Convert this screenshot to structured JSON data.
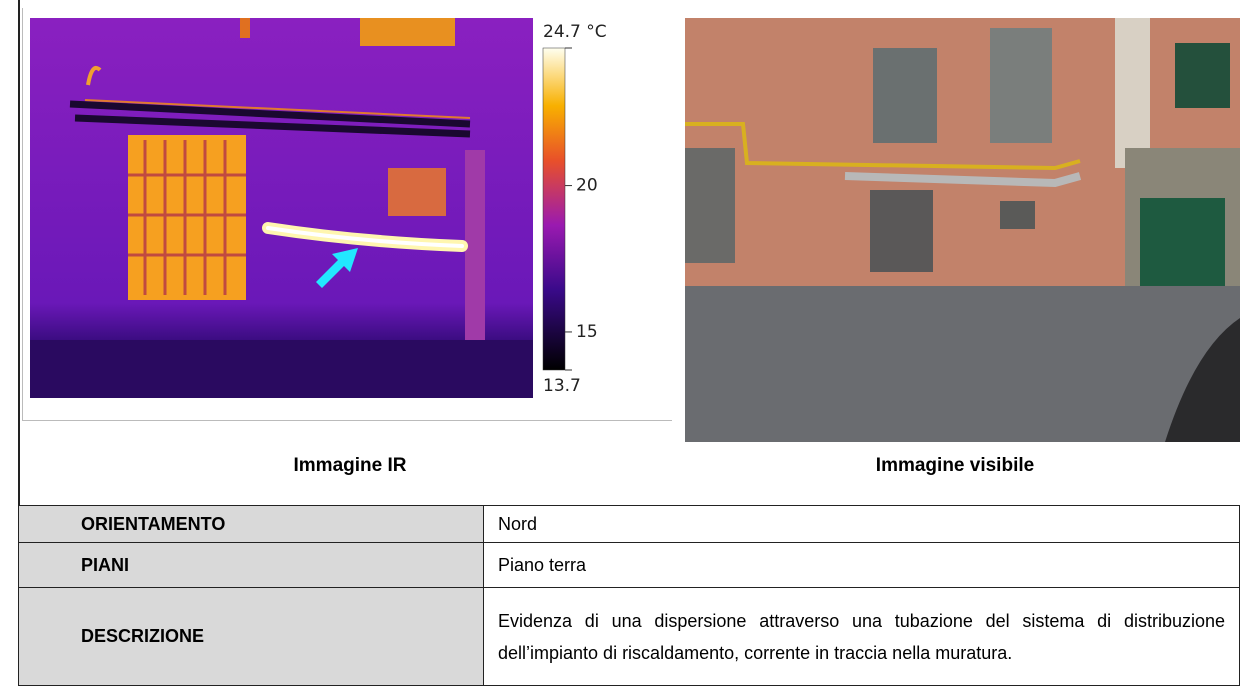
{
  "ir_image": {
    "caption": "Immagine IR",
    "colorbar": {
      "max": {
        "value": 24.7,
        "label": "24.7 °C"
      },
      "min": 13.7,
      "ticks": [
        20,
        15
      ]
    }
  },
  "visible_image": {
    "caption": "Immagine visibile"
  },
  "table": {
    "rows": [
      [
        "ORIENTAMENTO",
        "Nord"
      ],
      [
        "PIANI",
        "Piano terra"
      ],
      [
        "DESCRIZIONE",
        "Evidenza di una dispersione attraverso una tubazione del sistema di distribuzione dell’impianto di riscaldamento, corrente in traccia nella muratura."
      ]
    ]
  }
}
